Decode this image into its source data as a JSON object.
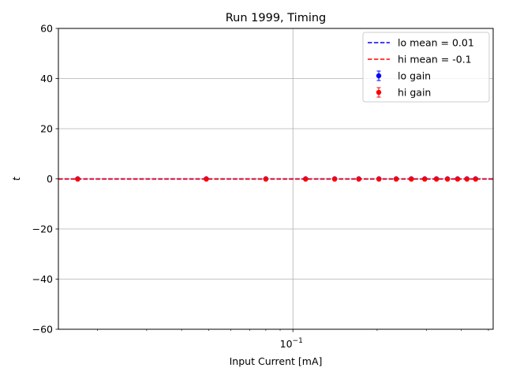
{
  "chart_data": {
    "type": "scatter",
    "title": "Run 1999, Timing",
    "xlabel": "Input Current [mA]",
    "ylabel": "t",
    "xscale": "log",
    "xlim": [
      0.0145,
      0.52
    ],
    "ylim": [
      -60,
      60
    ],
    "yticks": [
      -60,
      -40,
      -20,
      0,
      20,
      40,
      60
    ],
    "xtick_major": {
      "value": 0.1,
      "label": "10",
      "exponent": "−1"
    },
    "grid": true,
    "legend_position": "top-right",
    "series": [
      {
        "name": "lo gain",
        "color": "#0000ff",
        "x": [
          0.017,
          0.049,
          0.08,
          0.111,
          0.141,
          0.172,
          0.203,
          0.234,
          0.265,
          0.296,
          0.326,
          0.357,
          0.388,
          0.419,
          0.45
        ],
        "y": [
          0.01,
          0.01,
          0.01,
          0.01,
          0.01,
          0.01,
          0.01,
          0.01,
          0.01,
          0.01,
          0.01,
          0.01,
          0.01,
          0.01,
          0.01
        ]
      },
      {
        "name": "hi gain",
        "color": "#ff0000",
        "x": [
          0.017,
          0.049,
          0.08,
          0.111,
          0.141,
          0.172,
          0.203,
          0.234,
          0.265,
          0.296,
          0.326,
          0.357,
          0.388,
          0.419,
          0.45
        ],
        "y": [
          -0.1,
          -0.1,
          -0.1,
          -0.1,
          -0.1,
          -0.1,
          -0.1,
          -0.1,
          -0.1,
          -0.1,
          -0.1,
          -0.1,
          -0.1,
          -0.1,
          -0.1
        ]
      }
    ],
    "mean_lines": [
      {
        "name": "lo mean = 0.01",
        "value": 0.01,
        "color": "#0000ff"
      },
      {
        "name": "hi mean = -0.1",
        "value": -0.1,
        "color": "#ff0000"
      }
    ]
  }
}
